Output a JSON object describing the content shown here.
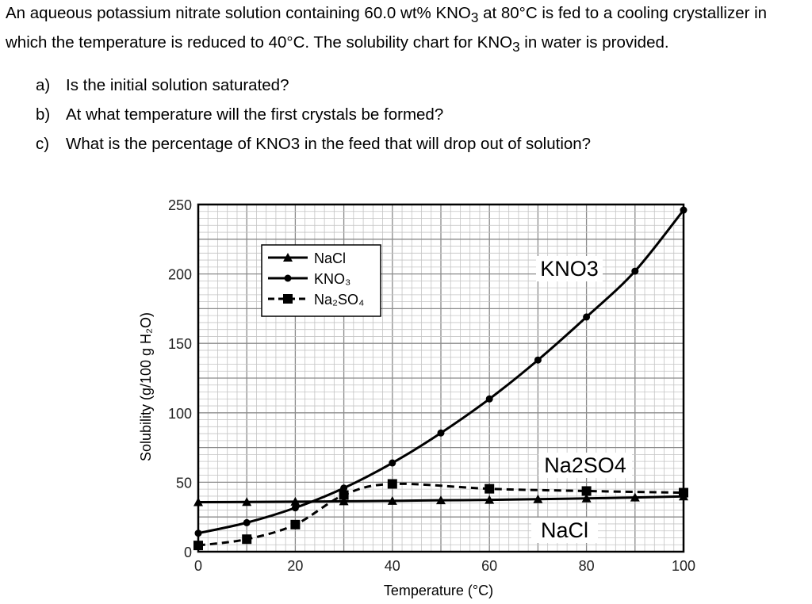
{
  "problem": {
    "statement_1": "An aqueous potassium nitrate solution containing 60.0 wt% KNO",
    "statement_sub": "3",
    "statement_2": " at 80°C is fed to a cooling crystallizer in which the temperature is reduced to 40°C.  The solubility chart for KNO",
    "statement_sub2": "3",
    "statement_3": " in water is provided.",
    "questions": [
      {
        "letter": "a)",
        "text": "Is the initial solution saturated?"
      },
      {
        "letter": "b)",
        "text": "At what temperature will the first crystals be formed?"
      },
      {
        "letter": "c)",
        "text": "What is the percentage of KNO3 in the feed that will drop out of solution?"
      }
    ]
  },
  "chart_data": {
    "type": "line",
    "xlabel": "Temperature (°C)",
    "ylabel": "Solubility (g/100 g H₂O)",
    "xlim": [
      0,
      100
    ],
    "ylim": [
      0,
      250
    ],
    "xticks": [
      0,
      20,
      40,
      60,
      80,
      100
    ],
    "yticks": [
      0,
      50,
      100,
      150,
      200,
      250
    ],
    "grid": true,
    "legend_position": "top-left",
    "series": [
      {
        "name": "NaCl",
        "marker": "triangle",
        "style": "solid",
        "x": [
          0,
          10,
          20,
          30,
          40,
          50,
          60,
          70,
          80,
          90,
          100
        ],
        "y": [
          35.7,
          35.8,
          36.0,
          36.3,
          36.6,
          37.0,
          37.3,
          37.8,
          38.4,
          39.0,
          39.8
        ]
      },
      {
        "name": "KNO₃",
        "marker": "circle",
        "style": "solid",
        "x": [
          0,
          10,
          20,
          30,
          40,
          50,
          60,
          70,
          80,
          90,
          100
        ],
        "y": [
          13.3,
          20.9,
          31.6,
          45.8,
          63.9,
          85.5,
          110,
          138,
          169,
          202,
          246
        ]
      },
      {
        "name": "Na₂SO₄",
        "marker": "square",
        "style": "dashed",
        "x": [
          0,
          10,
          20,
          30,
          40,
          60,
          80,
          100
        ],
        "y": [
          4.5,
          9.0,
          19.5,
          40.8,
          48.8,
          45.3,
          43.7,
          42.5
        ]
      }
    ],
    "annotations": [
      "KNO3",
      "Na2SO4",
      "NaCl"
    ]
  }
}
